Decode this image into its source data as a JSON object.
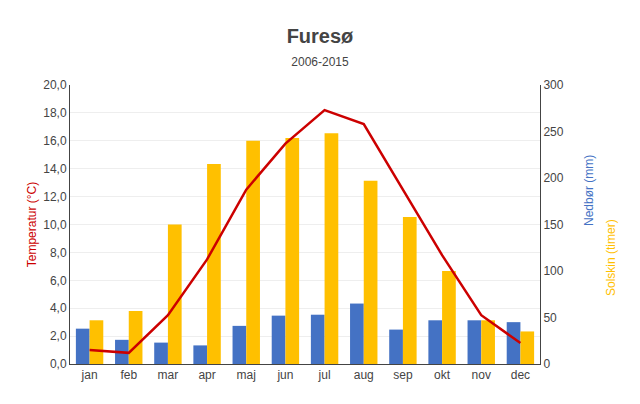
{
  "chart_data": {
    "type": "bar",
    "title": "Furesø",
    "subtitle": "2006-2015",
    "categories": [
      "jan",
      "feb",
      "mar",
      "apr",
      "maj",
      "jun",
      "jul",
      "aug",
      "sep",
      "okt",
      "nov",
      "dec"
    ],
    "series": [
      {
        "type": "bar",
        "axis": "y2",
        "color": "#4472C4",
        "values": [
          38,
          26,
          23,
          20,
          41,
          52,
          53,
          65,
          37,
          47,
          47,
          45
        ]
      },
      {
        "type": "bar",
        "axis": "y2",
        "color": "#FFC000",
        "values": [
          47,
          57,
          150,
          215,
          240,
          243,
          248,
          197,
          158,
          100,
          47,
          35
        ]
      },
      {
        "type": "line",
        "color": "#CC0000",
        "values": [
          1.0,
          0.8,
          3.5,
          7.5,
          12.5,
          15.8,
          18.2,
          17.2,
          12.5,
          7.8,
          3.5,
          1.5
        ]
      }
    ],
    "ylabel": "Temperatur (°C)",
    "y2label": [
      "Nedbør (mm)",
      "Solskin (timer)"
    ],
    "ylim": [
      0,
      20
    ],
    "yticks": [
      {
        "value": 0,
        "label": "0,0"
      },
      {
        "value": 2,
        "label": "2,0"
      },
      {
        "value": 4,
        "label": "4,0"
      },
      {
        "value": 6,
        "label": "6,0"
      },
      {
        "value": 8,
        "label": "8,0"
      },
      {
        "value": 10,
        "label": "10,0"
      },
      {
        "value": 12,
        "label": "12,0"
      },
      {
        "value": 14,
        "label": "14,0"
      },
      {
        "value": 16,
        "label": "16,0"
      },
      {
        "value": 18,
        "label": "18,0"
      },
      {
        "value": 20,
        "label": "20,0"
      }
    ],
    "y2lim": [
      0,
      300
    ],
    "y2ticks": [
      0,
      50,
      100,
      150,
      200,
      250,
      300
    ],
    "grid": true
  }
}
